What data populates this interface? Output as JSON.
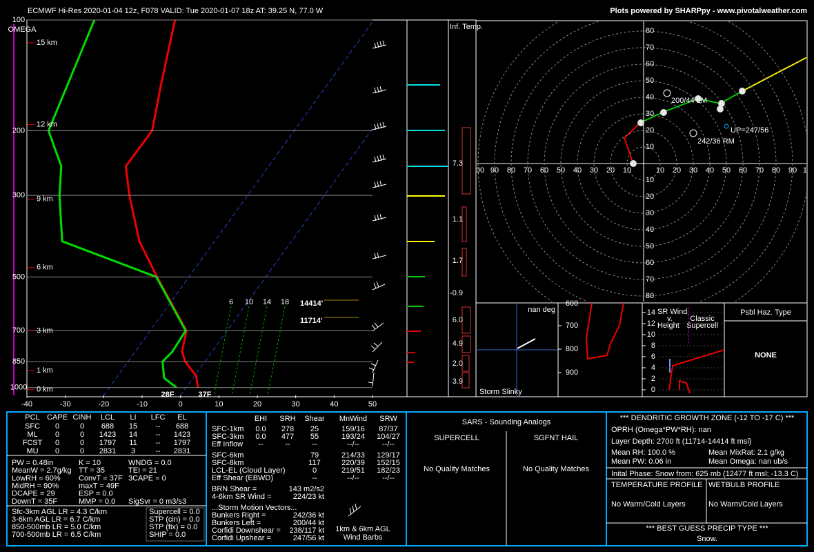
{
  "header": {
    "left": "ECMWF Hi-Res 2020-01-04 12z, F078    VALID: Tue 2020-01-07 18z    AT: 39.25 N, 77.0 W",
    "right": "Plots powered by SHARPpy - www.pivotalweather.com"
  },
  "skewt": {
    "xlim": [
      -40,
      50
    ],
    "ylim": [
      1050,
      100
    ],
    "xticks": [
      -40,
      -30,
      -20,
      -10,
      0,
      10,
      20,
      30,
      40,
      50
    ],
    "yticks": [
      100,
      200,
      300,
      500,
      700,
      850,
      1000
    ],
    "omega_label": "OMEGA",
    "height_labels": [
      {
        "value": 15,
        "label": "15 km"
      },
      {
        "value": 12,
        "label": "12 km"
      },
      {
        "value": 9,
        "label": "9 km"
      },
      {
        "value": 6,
        "label": "6 km"
      },
      {
        "value": 3,
        "label": "3 km"
      },
      {
        "value": 1,
        "label": "1 km"
      },
      {
        "value": 0,
        "label": "0 km"
      }
    ],
    "temperature": {
      "pressure": [
        1000,
        929,
        850,
        798,
        700,
        500,
        400,
        300,
        250,
        200,
        150,
        100
      ],
      "values": [
        3.1,
        0.4,
        -5.1,
        -7.8,
        -10.6,
        -28.3,
        -39.6,
        -50.8,
        -57.2,
        -57,
        -63.3,
        -71.8
      ]
    },
    "dewpoint": {
      "pressure": [
        1000,
        942,
        850,
        798,
        700,
        500,
        400,
        300,
        250,
        200,
        100
      ],
      "values": [
        -2.5,
        -7.5,
        -11,
        -10.3,
        -10.8,
        -28.5,
        -59.7,
        -69,
        -74,
        -84,
        -92.8
      ]
    },
    "surface_labels": {
      "dewpoint": "28F",
      "temperature": "37F"
    },
    "dgz_labels": [
      "14414'",
      "11714'"
    ],
    "mixing_ratio_labels": [
      6,
      10,
      14,
      18
    ]
  },
  "inferred_temp": {
    "title": "Inf. Temp.",
    "values": [
      7.3,
      1.1,
      1.7,
      -0.9,
      6,
      4.9,
      2,
      3.9
    ],
    "value_labels": [
      "7.3",
      "1.1",
      "1.7",
      "-0.9",
      "6.0",
      "4.9",
      "2.0",
      "3.9"
    ]
  },
  "hodograph": {
    "rings": [
      10,
      20,
      30,
      40,
      50,
      60,
      70,
      80
    ],
    "xticks": [
      10,
      20,
      30,
      40,
      50,
      60,
      70,
      80,
      90,
      100
    ],
    "height_markers": [
      0,
      1,
      2,
      3,
      4,
      5,
      6
    ],
    "annotations": {
      "left_mover": "200/44 LM",
      "right_mover": "242/36 RM",
      "upshear": "UP=247/56"
    }
  },
  "slinky": {
    "direction": "nan deg",
    "title": "Storm Slinky"
  },
  "omega_panel": {
    "yticks": [
      600,
      700,
      800,
      900
    ]
  },
  "sr_wind": {
    "title": [
      "SR Wind",
      "v.",
      "Height"
    ],
    "supercell_label": [
      "Classic",
      "Supercell"
    ],
    "yticks": [
      0,
      2,
      4,
      6,
      8,
      10,
      12,
      14
    ]
  },
  "hazard": {
    "title": "Psbl Haz. Type",
    "value": "NONE"
  },
  "parcels": {
    "header": [
      "PCL",
      "CAPE",
      "CINH",
      "LCL",
      "LI",
      "LFC",
      "EL"
    ],
    "rows": [
      [
        "SFC",
        "0",
        "0",
        "688",
        "15",
        "--",
        "688"
      ],
      [
        "ML",
        "0",
        "0",
        "1423",
        "14",
        "--",
        "1423"
      ],
      [
        "FCST",
        "0",
        "0",
        "1797",
        "11",
        "--",
        "1797"
      ],
      [
        "MU",
        "0",
        "0",
        "2831",
        "3",
        "--",
        "2831"
      ]
    ]
  },
  "indices": [
    [
      "PW = 0.48in",
      "K = 10",
      "WNDG = 0.0"
    ],
    [
      "MeanW = 2.7g/kg",
      "TT = 35",
      "TEI = 21"
    ],
    [
      "LowRH = 60%",
      "ConvT = 37F",
      "3CAPE = 0"
    ],
    [
      "MidRH = 90%",
      "maxT = 49F"
    ],
    [
      "DCAPE = 29",
      "ESP = 0.0"
    ],
    [
      "DownT = 35F",
      "MMP = 0.0",
      "SigSvr = 0 m3/s3"
    ]
  ],
  "lapse_rates": [
    "Sfc-3km AGL LR = 4.3 C/km",
    "3-6km AGL LR = 6.7 C/km",
    "850-500mb LR = 5.0 C/km",
    "700-500mb LR = 6.5 C/km"
  ],
  "composites": [
    "Supercell = 0.0",
    "STP (cin) = 0.0",
    "STP (fix) = 0.0",
    "SHIP = 0.0"
  ],
  "kinematics": {
    "header": [
      "EHI",
      "SRH",
      "Shear",
      "MnWind",
      "SRW"
    ],
    "rows": [
      [
        "SFC-1km",
        "0.0",
        "278",
        "25",
        "159/16",
        "87/37"
      ],
      [
        "SFC-3km",
        "0.0",
        "477",
        "55",
        "193/24",
        "104/27"
      ],
      [
        "Eff Inflow",
        "--",
        "--",
        "--",
        "--/--",
        "--/--"
      ],
      [
        "SFC-6km",
        "",
        "",
        "79",
        "214/33",
        "129/17"
      ],
      [
        "SFC-8km",
        "",
        "",
        "117",
        "220/39",
        "152/15"
      ],
      [
        "LCL-EL (Cloud Layer)",
        "",
        "",
        "0",
        "219/51",
        "182/23"
      ],
      [
        "Eff Shear (EBWD)",
        "",
        "",
        "--",
        "--/--",
        "--/--"
      ]
    ],
    "extra": [
      [
        "BRN Shear =",
        "143 m2/s2"
      ],
      [
        "4-6km SR Wind =",
        "224/23 kt"
      ]
    ],
    "motion_title": "...Storm Motion Vectors...",
    "motion": [
      [
        "Bunkers Right =",
        "242/36 kt"
      ],
      [
        "Bunkers Left =",
        "200/44 kt"
      ],
      [
        "Corfidi Downshear =",
        "238/117 kt"
      ],
      [
        "Corfidi Upshear =",
        "247/56 kt"
      ]
    ],
    "barb_legend": [
      "1km & 6km AGL",
      "Wind Barbs"
    ]
  },
  "sars": {
    "title": "SARS - Sounding Analogs",
    "supercell": "SUPERCELL",
    "hail": "SGFNT HAIL",
    "supercell_result": "No Quality Matches",
    "hail_result": "No Quality Matches"
  },
  "dgz": {
    "title": "*** DENDRITIC GROWTH ZONE (-12 TO -17 C) ***",
    "oprh": "OPRH (Omega*PW*RH): nan",
    "depth": "Layer Depth: 2700 ft (11714-14414 ft msl)",
    "mean_rh": "Mean RH: 100.0 %",
    "mixrat": "Mean MixRat: 2.1 g/kg",
    "pw": "Mean PW: 0.06 in",
    "omega": "Mean Omega: nan ub/s",
    "phase": "Inital Phase: Snow from: 625 mb (12477 ft msl; -13.3 C)",
    "temp_profile": "TEMPERATURE PROFILE",
    "wetbulb_profile": "WETBULB PROFILE",
    "temp_result": "No Warm/Cold Layers",
    "wetbulb_result": "No Warm/Cold Layers",
    "precip_title": "*** BEST GUESS PRECIP TYPE ***",
    "precip": "Snow."
  }
}
